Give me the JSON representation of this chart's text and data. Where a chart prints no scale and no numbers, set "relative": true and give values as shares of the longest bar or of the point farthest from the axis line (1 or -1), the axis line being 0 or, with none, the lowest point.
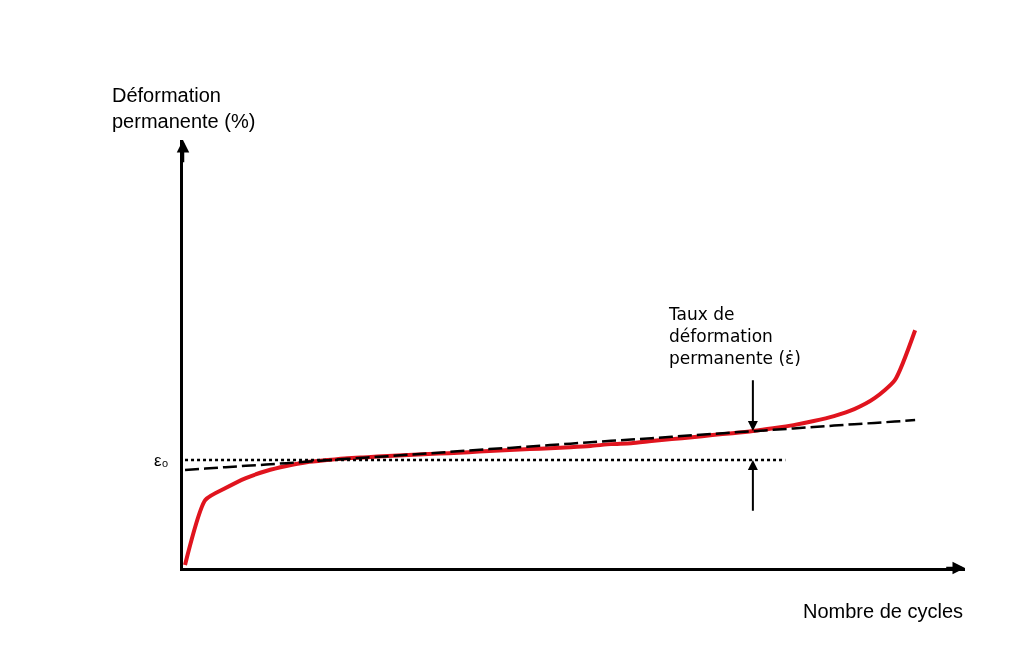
{
  "chart_data": {
    "type": "line",
    "relative": true,
    "xlabel": "Nombre de cycles",
    "categories": [
      null,
      null,
      null,
      null,
      null,
      null,
      null,
      null,
      null,
      null,
      null,
      null,
      null,
      null,
      null,
      null,
      null,
      null,
      null,
      null,
      null,
      null,
      null,
      null,
      null,
      null,
      null,
      null,
      null,
      null,
      null,
      null,
      null,
      null,
      null,
      null,
      null
    ],
    "series": [
      {
        "color": "#e0141e",
        "line_style": "solid",
        "values": [
          0.013,
          0.286,
          0.336,
          0.378,
          0.408,
          0.429,
          0.445,
          0.454,
          0.462,
          0.466,
          0.471,
          0.475,
          0.479,
          0.483,
          0.487,
          0.492,
          0.496,
          0.5,
          0.504,
          0.508,
          0.513,
          0.521,
          0.525,
          0.534,
          0.542,
          0.55,
          0.559,
          0.567,
          0.576,
          0.588,
          0.601,
          0.618,
          0.639,
          0.668,
          0.714,
          0.79,
          1
        ]
      },
      {
        "color": "#000000",
        "line_style": "dashed",
        "values": [
          0.412,
          0.418,
          0.424,
          0.43,
          0.435,
          0.441,
          0.447,
          0.453,
          0.459,
          0.465,
          0.47,
          0.476,
          0.482,
          0.488,
          0.494,
          0.5,
          0.505,
          0.511,
          0.517,
          0.523,
          0.529,
          0.535,
          0.54,
          0.546,
          0.552,
          0.558,
          0.564,
          0.57,
          0.575,
          0.581,
          0.587,
          0.593,
          0.599,
          0.605,
          0.61,
          0.616,
          0.622
        ]
      }
    ],
    "ref_lines": [
      {
        "axis": "y",
        "value": 0.454,
        "label": "ε₀",
        "line_style": "dotted",
        "color": "#000000"
      }
    ],
    "annotations": [
      "Taux de\ndéformation\npermanente (ε̇)",
      "Déformation\npermanente (%)"
    ],
    "legend": false,
    "tick_labels": false
  }
}
